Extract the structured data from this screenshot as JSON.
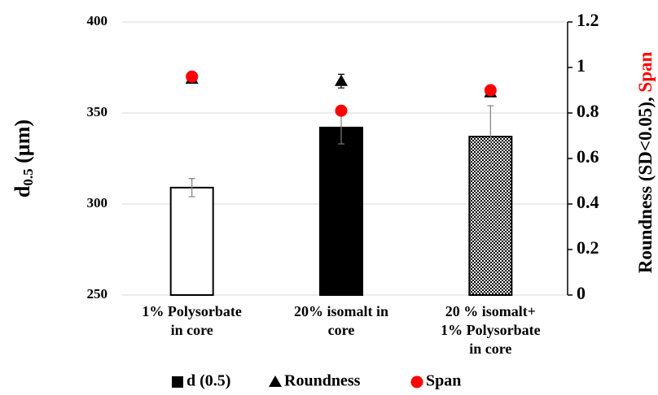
{
  "chart_data": {
    "type": "bar_dual_axis",
    "y_label": {
      "main": "d",
      "sub": "0.5",
      "rest": " (µm)"
    },
    "y2_label": {
      "main": "Roundness (SD<0.05), ",
      "accent": "Span",
      "accent_color": "#ff0000"
    },
    "categories": [
      [
        "1% Polysorbate",
        "in core"
      ],
      [
        "20% isomalt in",
        "core"
      ],
      [
        "20 % isomalt+",
        "1% Polysorbate",
        "in core"
      ]
    ],
    "series": [
      {
        "name": "d (0.5)",
        "kind": "bar",
        "color": "#000000",
        "fills": [
          "white",
          "black",
          "checker"
        ],
        "values": [
          309,
          342,
          337
        ],
        "errors": [
          5,
          9,
          17
        ]
      },
      {
        "name": "Roundness",
        "kind": "triangle",
        "axis": "y2",
        "color": "#000000",
        "values": [
          0.95,
          0.94,
          0.89
        ],
        "errors": [
          0.01,
          0.03,
          0.01
        ]
      },
      {
        "name": "Span",
        "kind": "dot",
        "axis": "y2",
        "color": "#ff0000",
        "values": [
          0.96,
          0.81,
          0.9
        ]
      }
    ],
    "ylim": [
      250,
      400
    ],
    "yticks": [
      250,
      300,
      350,
      400
    ],
    "y2lim": [
      0,
      1.2
    ],
    "y2ticks": [
      0,
      0.2,
      0.4,
      0.6,
      0.8,
      1,
      1.2
    ],
    "grid": true
  }
}
